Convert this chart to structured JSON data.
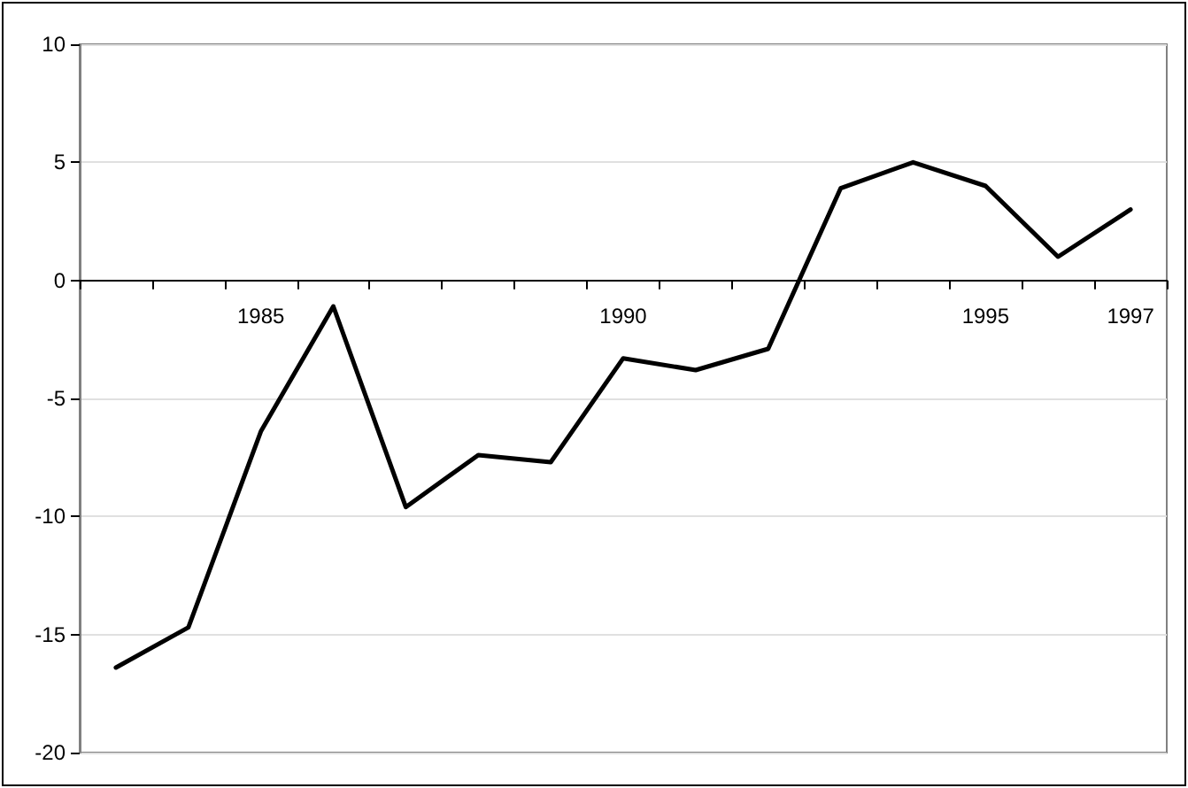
{
  "chart_data": {
    "type": "line",
    "categories": [
      null,
      null,
      "1985",
      null,
      null,
      null,
      null,
      "1990",
      null,
      null,
      null,
      null,
      "1995",
      null,
      "1997"
    ],
    "series": [
      {
        "color": "#000000",
        "values": [
          -16.4,
          -14.7,
          -6.4,
          -1.1,
          -9.6,
          -7.4,
          -7.7,
          -3.3,
          -3.8,
          -2.9,
          3.9,
          5.0,
          4.0,
          1.0,
          3.0
        ]
      }
    ],
    "ylim": [
      -20,
      10
    ],
    "yticks": [
      -20,
      -15,
      -10,
      -5,
      0,
      5,
      10
    ],
    "grid": "y",
    "marker": "none",
    "line_style": "solid"
  }
}
